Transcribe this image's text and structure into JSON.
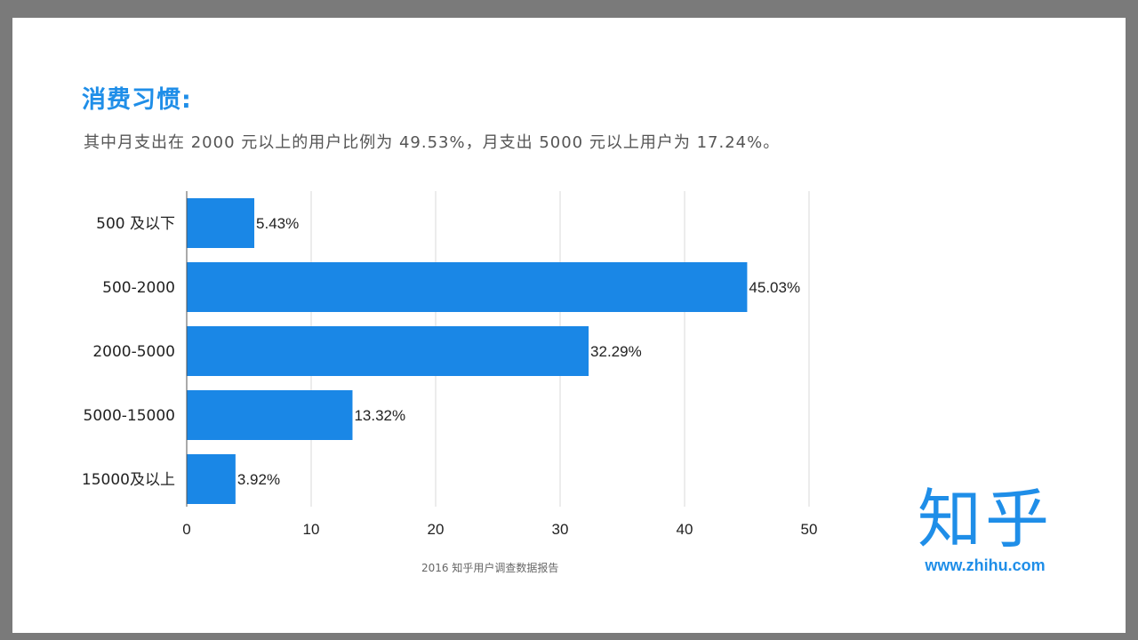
{
  "heading": "消费习惯:",
  "subtitle": "其中月支出在 2000 元以上的用户比例为 49.53%，月支出 5000 元以上用户为 17.24%。",
  "footer": "2016 知乎用户调查数据报告",
  "logo": {
    "mark": "知乎",
    "url": "www.zhihu.com"
  },
  "colors": {
    "accent": "#1f8ee8",
    "bar": "#1a87e6",
    "grid": "#d9d9d9",
    "background": "#ffffff",
    "frame": "#7a7a7a"
  },
  "chart_data": {
    "type": "bar",
    "orientation": "horizontal",
    "categories": [
      "500 及以下",
      "500-2000",
      "2000-5000",
      "5000-15000",
      "15000及以上"
    ],
    "values": [
      5.43,
      45.03,
      32.29,
      13.32,
      3.92
    ],
    "data_labels": [
      "5.43%",
      "45.03%",
      "32.29%",
      "13.32%",
      "3.92%"
    ],
    "xlim": [
      0,
      50
    ],
    "x_ticks": [
      0,
      10,
      20,
      30,
      40,
      50
    ],
    "x_tick_labels": [
      "0",
      "10",
      "20",
      "30",
      "40",
      "50"
    ],
    "title": "",
    "xlabel": "",
    "ylabel": "",
    "grid": "vertical",
    "legend": "none"
  }
}
